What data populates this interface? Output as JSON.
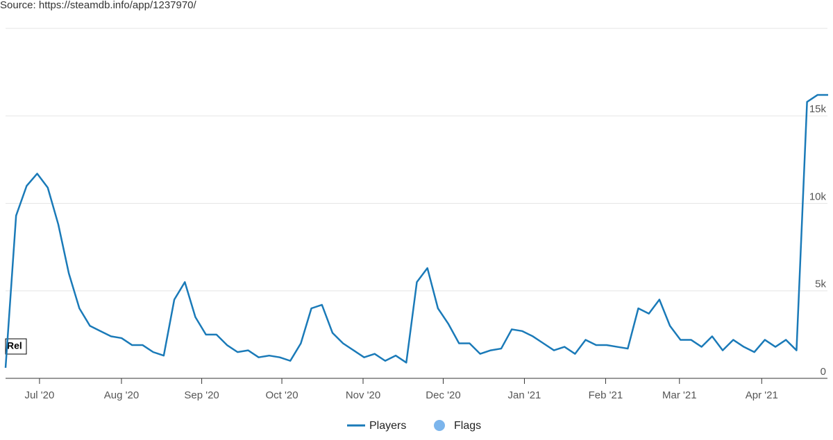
{
  "chart_data": {
    "type": "line",
    "source": "Source: https://steamdb.info/app/1237970/",
    "series": [
      {
        "name": "Players",
        "color": "#1a7ab8",
        "values": [
          600,
          9300,
          11000,
          11700,
          10900,
          8800,
          6000,
          4000,
          3000,
          2700,
          2400,
          2300,
          1900,
          1900,
          1500,
          1300,
          4500,
          5500,
          3500,
          2500,
          2500,
          1900,
          1500,
          1600,
          1200,
          1300,
          1200,
          1000,
          2000,
          4000,
          4200,
          2600,
          2000,
          1600,
          1200,
          1400,
          1000,
          1300,
          900,
          5500,
          6300,
          4000,
          3100,
          2000,
          2000,
          1400,
          1600,
          1700,
          2800,
          2700,
          2400,
          2000,
          1600,
          1800,
          1400,
          2200,
          1900,
          1900,
          1800,
          1700,
          4000,
          3700,
          4500,
          3000,
          2200,
          2200,
          1800,
          2400,
          1600,
          2200,
          1800,
          1500,
          2200,
          1800,
          2200,
          1600,
          15800,
          16200,
          16200
        ]
      }
    ],
    "flags": {
      "name": "Flags",
      "color": "#7cb5ec"
    },
    "annotations": [
      "Rel"
    ],
    "xlim": [
      0,
      78
    ],
    "xticks": [
      {
        "value": 3.22,
        "label": "Jul '20"
      },
      {
        "value": 10.99,
        "label": "Aug '20"
      },
      {
        "value": 18.6,
        "label": "Sep '20"
      },
      {
        "value": 26.2,
        "label": "Oct '20"
      },
      {
        "value": 33.9,
        "label": "Nov '20"
      },
      {
        "value": 41.5,
        "label": "Dec '20"
      },
      {
        "value": 49.2,
        "label": "Jan '21"
      },
      {
        "value": 56.9,
        "label": "Feb '21"
      },
      {
        "value": 63.9,
        "label": "Mar '21"
      },
      {
        "value": 71.7,
        "label": "Apr '21"
      }
    ],
    "ylim": [
      0,
      20000
    ],
    "yticks": [
      0,
      {
        "value": 5000,
        "label": "5k"
      },
      {
        "value": 10000,
        "label": "10k"
      },
      {
        "value": 15000,
        "label": "15k"
      }
    ],
    "grid": true
  }
}
